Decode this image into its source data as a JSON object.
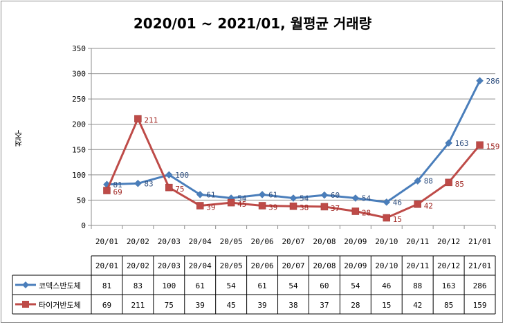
{
  "chart_data": {
    "type": "line",
    "title": "2020/01 ~ 2021/01, 월평균 거래량",
    "xlabel": "",
    "ylabel": "천주",
    "ylim": [
      0,
      350
    ],
    "yticks": [
      0,
      50,
      100,
      150,
      200,
      250,
      300,
      350
    ],
    "grid": true,
    "categories": [
      "20/01",
      "20/02",
      "20/03",
      "20/04",
      "20/05",
      "20/06",
      "20/07",
      "20/08",
      "20/09",
      "20/10",
      "20/11",
      "20/12",
      "21/01"
    ],
    "series": [
      {
        "name": "코덱스반도체",
        "values": [
          81,
          83,
          100,
          61,
          54,
          61,
          54,
          60,
          54,
          46,
          88,
          163,
          286
        ]
      },
      {
        "name": "타이거반도체",
        "values": [
          69,
          211,
          75,
          39,
          45,
          39,
          38,
          37,
          28,
          15,
          42,
          85,
          159
        ]
      }
    ],
    "data_table": true
  },
  "colors": {
    "series1": "#4a7ebb",
    "series2": "#be4b48",
    "series1_label": "#2f4f7f",
    "series2_label": "#a02622",
    "grid": "#8c8c8c"
  }
}
